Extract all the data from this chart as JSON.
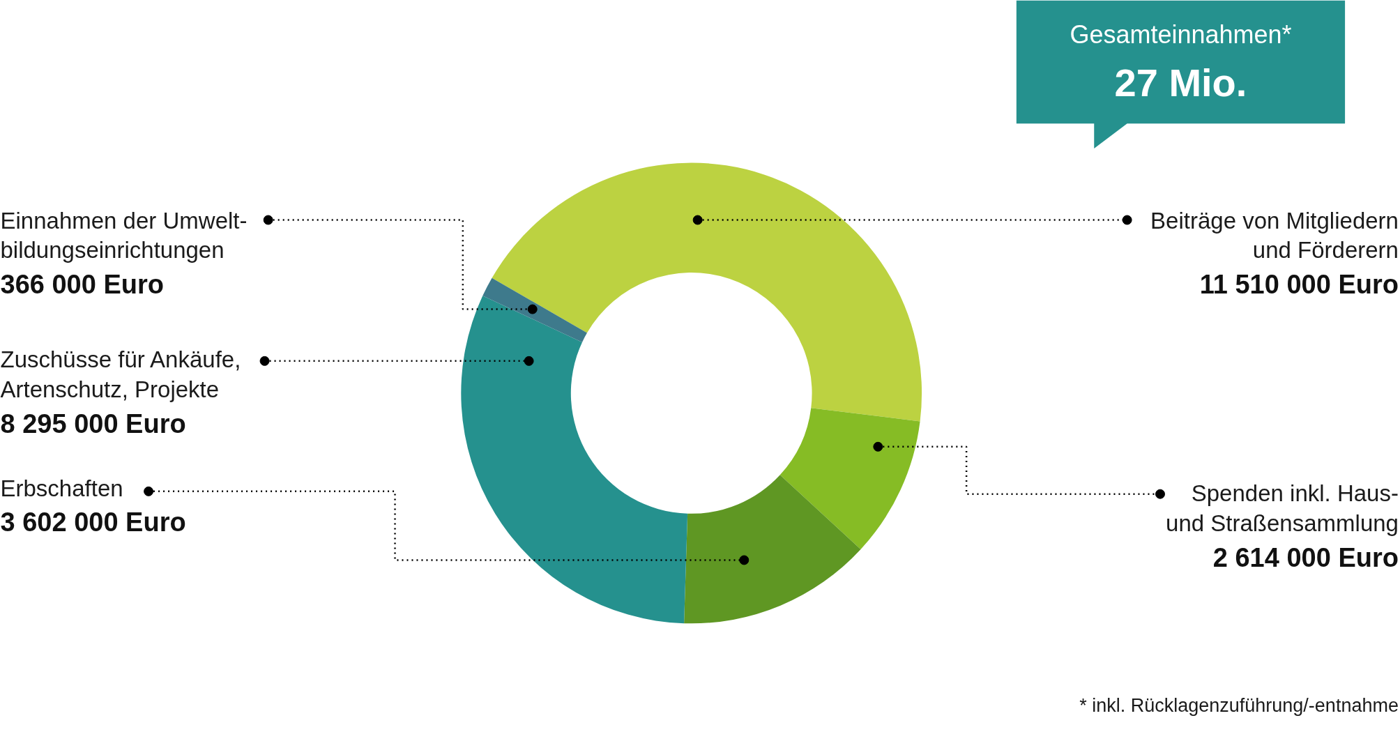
{
  "chart_data": {
    "type": "donut",
    "categories": [
      "Beiträge von Mitgliedern\nund Förderern",
      "Spenden inkl. Haus-\nund Straßensammlung",
      "Erbschaften",
      "Zuschüsse für Ankäufe,\nArtenschutz, Projekte",
      "Einnahmen der Umwelt-\nbildungseinrichtungen"
    ],
    "values": [
      11510000,
      2614000,
      3602000,
      8295000,
      366000
    ],
    "colors": [
      "#bcd241",
      "#86bc25",
      "#5f9723",
      "#25918e",
      "#3e7a8c"
    ],
    "value_labels": [
      "11 510 000 Euro",
      "2 614 000 Euro",
      "3 602 000 Euro",
      "8 295 000 Euro",
      "366 000 Euro"
    ],
    "annotations": [
      "Gesamteinnahmen*",
      "27 Mio.",
      "* inkl. Rücklagenzuführung/-entnahme"
    ]
  }
}
